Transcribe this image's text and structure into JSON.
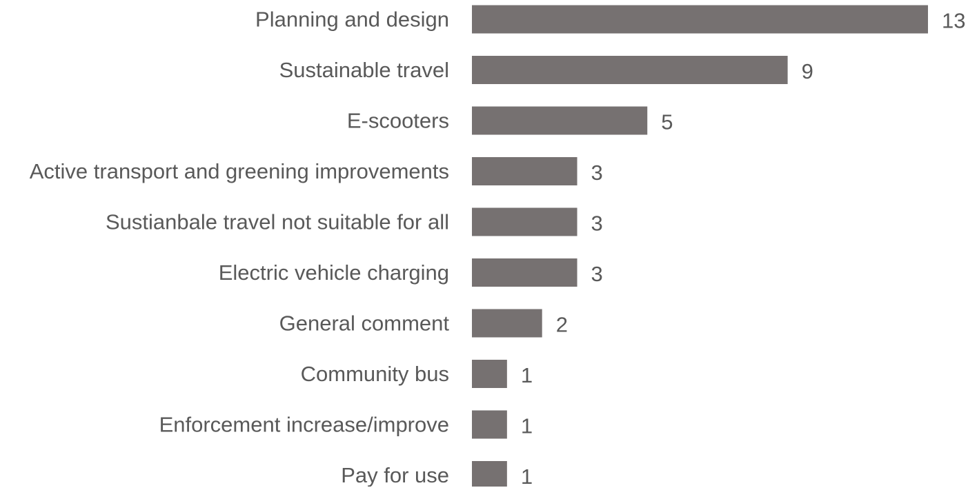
{
  "chart_data": {
    "type": "bar",
    "orientation": "horizontal",
    "categories": [
      "Planning and design",
      "Sustainable travel",
      "E-scooters",
      "Active transport and greening improvements",
      "Sustianbale travel not suitable for all",
      "Electric vehicle charging",
      "General comment",
      "Community bus",
      "Enforcement increase/improve",
      "Pay for use"
    ],
    "values": [
      13,
      9,
      5,
      3,
      3,
      3,
      2,
      1,
      1,
      1
    ],
    "value_labels": [
      "13",
      "9",
      "5",
      "3",
      "3",
      "3",
      "2",
      "1",
      "1",
      "1"
    ],
    "title": "",
    "xlabel": "",
    "ylabel": "",
    "xlim": [
      0,
      13
    ],
    "grid": false,
    "legend": "none",
    "bar_color": "#767171",
    "text_color": "#595959"
  }
}
